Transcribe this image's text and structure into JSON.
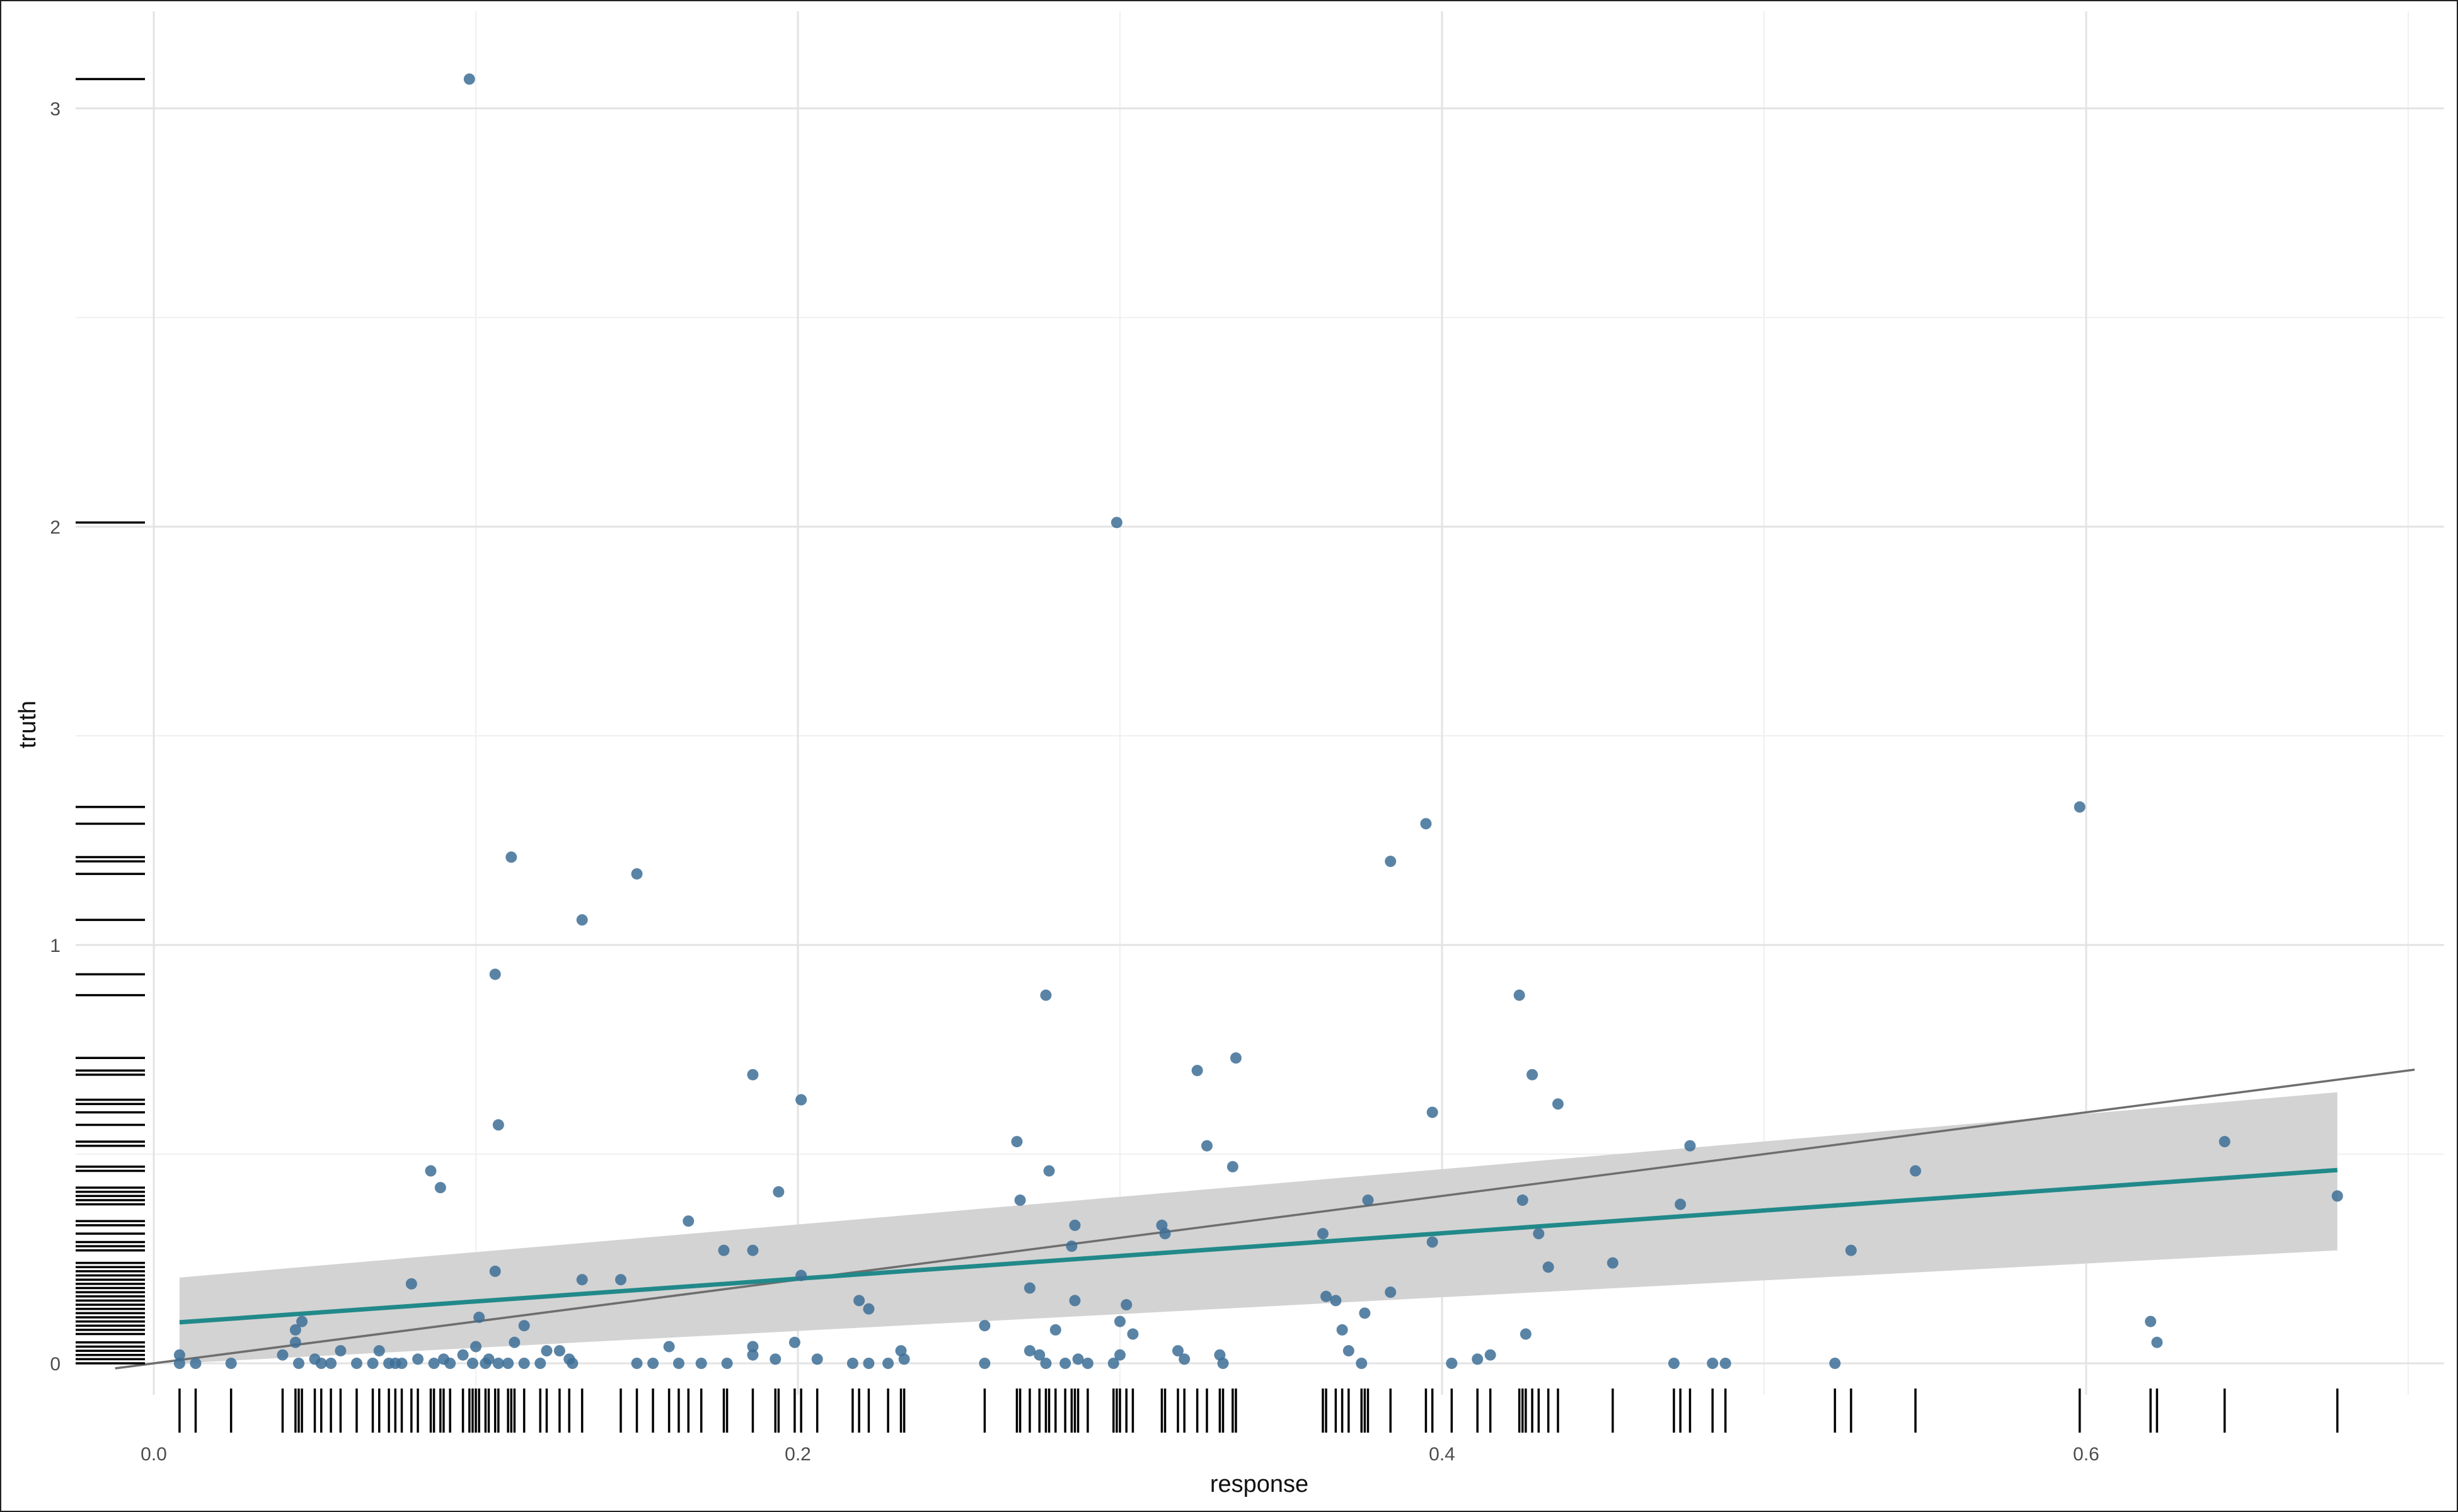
{
  "chart_data": {
    "type": "scatter",
    "title": "",
    "xlabel": "response",
    "ylabel": "truth",
    "xlim": [
      -0.012,
      0.702
    ],
    "ylim": [
      -0.022,
      3.2
    ],
    "x_ticks": [
      0.0,
      0.2,
      0.4,
      0.6
    ],
    "x_tick_labels": [
      "0.0",
      "0.2",
      "0.4",
      "0.6"
    ],
    "y_ticks": [
      0,
      1,
      2,
      3
    ],
    "y_tick_labels": [
      "0",
      "1",
      "2",
      "3"
    ],
    "x_minor_ticks": [
      0.1,
      0.3,
      0.5,
      0.7
    ],
    "y_minor_ticks": [
      0.5,
      1.5,
      2.5
    ],
    "grid": true,
    "legend": "none",
    "colors": {
      "points": "#3d6f96",
      "fit_line": "#22898a",
      "ci_band": "#d3d3d3",
      "reference_line": "#6e6e6e",
      "rug": "#000000"
    },
    "fit_line": {
      "x": [
        0.008,
        0.678
      ],
      "y": [
        0.098,
        0.462
      ]
    },
    "ci_band": {
      "x": [
        0.008,
        0.678
      ],
      "lower": [
        0.0,
        0.27
      ],
      "upper": [
        0.205,
        0.648
      ]
    },
    "reference_line": {
      "slope": 1,
      "intercept": 0
    },
    "points": [
      [
        0.098,
        3.07
      ],
      [
        0.299,
        2.01
      ],
      [
        0.598,
        1.33
      ],
      [
        0.395,
        1.29
      ],
      [
        0.111,
        1.21
      ],
      [
        0.384,
        1.2
      ],
      [
        0.15,
        1.17
      ],
      [
        0.133,
        1.06
      ],
      [
        0.106,
        0.93
      ],
      [
        0.277,
        0.88
      ],
      [
        0.424,
        0.88
      ],
      [
        0.324,
        0.7
      ],
      [
        0.186,
        0.69
      ],
      [
        0.428,
        0.69
      ],
      [
        0.336,
        0.73
      ],
      [
        0.201,
        0.63
      ],
      [
        0.436,
        0.62
      ],
      [
        0.397,
        0.6
      ],
      [
        0.107,
        0.57
      ],
      [
        0.268,
        0.53
      ],
      [
        0.327,
        0.52
      ],
      [
        0.477,
        0.52
      ],
      [
        0.086,
        0.46
      ],
      [
        0.089,
        0.42
      ],
      [
        0.278,
        0.46
      ],
      [
        0.335,
        0.47
      ],
      [
        0.643,
        0.53
      ],
      [
        0.547,
        0.46
      ],
      [
        0.194,
        0.41
      ],
      [
        0.269,
        0.39
      ],
      [
        0.377,
        0.39
      ],
      [
        0.425,
        0.39
      ],
      [
        0.678,
        0.4
      ],
      [
        0.474,
        0.38
      ],
      [
        0.166,
        0.34
      ],
      [
        0.286,
        0.33
      ],
      [
        0.313,
        0.33
      ],
      [
        0.314,
        0.31
      ],
      [
        0.363,
        0.31
      ],
      [
        0.43,
        0.31
      ],
      [
        0.177,
        0.27
      ],
      [
        0.186,
        0.27
      ],
      [
        0.285,
        0.28
      ],
      [
        0.397,
        0.29
      ],
      [
        0.527,
        0.27
      ],
      [
        0.106,
        0.22
      ],
      [
        0.133,
        0.2
      ],
      [
        0.145,
        0.2
      ],
      [
        0.201,
        0.21
      ],
      [
        0.433,
        0.23
      ],
      [
        0.453,
        0.24
      ],
      [
        0.08,
        0.19
      ],
      [
        0.272,
        0.18
      ],
      [
        0.384,
        0.17
      ],
      [
        0.219,
        0.15
      ],
      [
        0.222,
        0.13
      ],
      [
        0.286,
        0.15
      ],
      [
        0.302,
        0.14
      ],
      [
        0.364,
        0.16
      ],
      [
        0.367,
        0.15
      ],
      [
        0.376,
        0.12
      ],
      [
        0.101,
        0.11
      ],
      [
        0.115,
        0.09
      ],
      [
        0.258,
        0.09
      ],
      [
        0.28,
        0.08
      ],
      [
        0.3,
        0.1
      ],
      [
        0.304,
        0.07
      ],
      [
        0.369,
        0.08
      ],
      [
        0.426,
        0.07
      ],
      [
        0.62,
        0.1
      ],
      [
        0.622,
        0.05
      ],
      [
        0.044,
        0.08
      ],
      [
        0.046,
        0.1
      ],
      [
        0.044,
        0.05
      ],
      [
        0.1,
        0.04
      ],
      [
        0.112,
        0.05
      ],
      [
        0.199,
        0.05
      ],
      [
        0.16,
        0.04
      ],
      [
        0.186,
        0.04
      ],
      [
        0.186,
        0.02
      ],
      [
        0.371,
        0.03
      ],
      [
        0.318,
        0.03
      ],
      [
        0.272,
        0.03
      ],
      [
        0.275,
        0.02
      ],
      [
        0.232,
        0.03
      ],
      [
        0.122,
        0.03
      ],
      [
        0.126,
        0.03
      ],
      [
        0.058,
        0.03
      ],
      [
        0.07,
        0.03
      ],
      [
        0.04,
        0.02
      ],
      [
        0.008,
        0.02
      ],
      [
        0.05,
        0.01
      ],
      [
        0.082,
        0.01
      ],
      [
        0.09,
        0.01
      ],
      [
        0.096,
        0.02
      ],
      [
        0.104,
        0.01
      ],
      [
        0.129,
        0.01
      ],
      [
        0.193,
        0.01
      ],
      [
        0.206,
        0.01
      ],
      [
        0.233,
        0.01
      ],
      [
        0.287,
        0.01
      ],
      [
        0.3,
        0.02
      ],
      [
        0.32,
        0.01
      ],
      [
        0.331,
        0.02
      ],
      [
        0.411,
        0.01
      ],
      [
        0.415,
        0.02
      ],
      [
        0.008,
        0.0
      ],
      [
        0.013,
        0.0
      ],
      [
        0.024,
        0.0
      ],
      [
        0.045,
        0.0
      ],
      [
        0.052,
        0.0
      ],
      [
        0.055,
        0.0
      ],
      [
        0.063,
        0.0
      ],
      [
        0.068,
        0.0
      ],
      [
        0.073,
        0.0
      ],
      [
        0.075,
        0.0
      ],
      [
        0.077,
        0.0
      ],
      [
        0.087,
        0.0
      ],
      [
        0.092,
        0.0
      ],
      [
        0.099,
        0.0
      ],
      [
        0.103,
        0.0
      ],
      [
        0.107,
        0.0
      ],
      [
        0.11,
        0.0
      ],
      [
        0.115,
        0.0
      ],
      [
        0.12,
        0.0
      ],
      [
        0.13,
        0.0
      ],
      [
        0.15,
        0.0
      ],
      [
        0.155,
        0.0
      ],
      [
        0.163,
        0.0
      ],
      [
        0.17,
        0.0
      ],
      [
        0.178,
        0.0
      ],
      [
        0.217,
        0.0
      ],
      [
        0.222,
        0.0
      ],
      [
        0.228,
        0.0
      ],
      [
        0.258,
        0.0
      ],
      [
        0.277,
        0.0
      ],
      [
        0.283,
        0.0
      ],
      [
        0.29,
        0.0
      ],
      [
        0.298,
        0.0
      ],
      [
        0.332,
        0.0
      ],
      [
        0.375,
        0.0
      ],
      [
        0.403,
        0.0
      ],
      [
        0.472,
        0.0
      ],
      [
        0.484,
        0.0
      ],
      [
        0.488,
        0.0
      ],
      [
        0.522,
        0.0
      ]
    ],
    "rug_x": [
      0.008,
      0.013,
      0.024,
      0.04,
      0.044,
      0.045,
      0.046,
      0.05,
      0.052,
      0.055,
      0.058,
      0.063,
      0.068,
      0.07,
      0.073,
      0.075,
      0.077,
      0.08,
      0.082,
      0.086,
      0.087,
      0.089,
      0.09,
      0.092,
      0.096,
      0.098,
      0.099,
      0.1,
      0.101,
      0.103,
      0.104,
      0.106,
      0.107,
      0.11,
      0.111,
      0.112,
      0.115,
      0.12,
      0.122,
      0.126,
      0.129,
      0.133,
      0.145,
      0.15,
      0.155,
      0.16,
      0.163,
      0.166,
      0.17,
      0.177,
      0.178,
      0.186,
      0.193,
      0.194,
      0.199,
      0.201,
      0.206,
      0.217,
      0.219,
      0.222,
      0.228,
      0.232,
      0.233,
      0.258,
      0.268,
      0.269,
      0.272,
      0.275,
      0.277,
      0.278,
      0.28,
      0.283,
      0.285,
      0.286,
      0.287,
      0.29,
      0.298,
      0.299,
      0.3,
      0.302,
      0.304,
      0.313,
      0.314,
      0.318,
      0.32,
      0.324,
      0.327,
      0.331,
      0.332,
      0.335,
      0.336,
      0.363,
      0.364,
      0.367,
      0.369,
      0.371,
      0.375,
      0.376,
      0.377,
      0.384,
      0.395,
      0.397,
      0.403,
      0.411,
      0.415,
      0.424,
      0.425,
      0.426,
      0.428,
      0.43,
      0.433,
      0.436,
      0.453,
      0.472,
      0.474,
      0.477,
      0.484,
      0.488,
      0.522,
      0.527,
      0.547,
      0.598,
      0.62,
      0.622,
      0.643,
      0.678
    ],
    "rug_y": [
      3.07,
      2.01,
      1.33,
      1.29,
      1.21,
      1.2,
      1.17,
      1.06,
      0.93,
      0.88,
      0.73,
      0.7,
      0.69,
      0.63,
      0.62,
      0.6,
      0.57,
      0.53,
      0.52,
      0.47,
      0.46,
      0.42,
      0.41,
      0.4,
      0.39,
      0.38,
      0.34,
      0.33,
      0.31,
      0.29,
      0.28,
      0.27,
      0.24,
      0.23,
      0.22,
      0.21,
      0.2,
      0.19,
      0.18,
      0.17,
      0.16,
      0.15,
      0.14,
      0.13,
      0.12,
      0.11,
      0.1,
      0.09,
      0.08,
      0.07,
      0.05,
      0.04,
      0.03,
      0.02,
      0.01,
      0.0
    ]
  }
}
